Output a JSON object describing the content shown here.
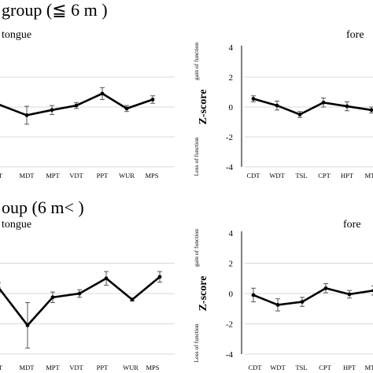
{
  "titles": {
    "top": "group (≦ 6 m )",
    "bottom": "oup (6 m< )"
  },
  "ylabel": {
    "main": "Z-score",
    "loss": "Loss of function",
    "gain": "gain of function"
  },
  "chart_data": [
    {
      "id": "top-left",
      "type": "line",
      "panel_label": "tongue",
      "categories": [
        "PT",
        "MDT",
        "MPT",
        "VDT",
        "PPT",
        "WUR",
        "MPS"
      ],
      "series": [
        {
          "values": [
            0.3,
            -0.55,
            -0.2,
            0.1,
            0.9,
            -0.1,
            0.5
          ],
          "error": [
            0.3,
            0.6,
            0.3,
            0.2,
            0.4,
            0.2,
            0.25
          ]
        }
      ],
      "ylim": [
        -4,
        4
      ],
      "yticks": [],
      "show_ylabel": false
    },
    {
      "id": "top-right",
      "type": "line",
      "panel_label": "fore",
      "categories": [
        "CDT",
        "WDT",
        "TSL",
        "CPT",
        "HPT",
        "MT"
      ],
      "series": [
        {
          "values": [
            0.55,
            0.1,
            -0.5,
            0.3,
            0.05,
            -0.2
          ],
          "error": [
            0.2,
            0.3,
            0.2,
            0.3,
            0.3,
            0.2
          ]
        }
      ],
      "ylim": [
        -4,
        4
      ],
      "yticks": [
        "4",
        "2",
        "0",
        "-2",
        "-4"
      ],
      "show_ylabel": true
    },
    {
      "id": "bottom-left",
      "type": "line",
      "panel_label": "tongue",
      "categories": [
        "PT",
        "MDT",
        "MPT",
        "VDT",
        "PPT",
        "WUR",
        "MPS"
      ],
      "series": [
        {
          "values": [
            0.4,
            -2.1,
            -0.25,
            0.0,
            1.0,
            -0.4,
            1.1
          ],
          "error": [
            0.3,
            1.5,
            0.35,
            0.25,
            0.45,
            0.1,
            0.35
          ]
        }
      ],
      "ylim": [
        -4,
        4
      ],
      "yticks": [],
      "show_ylabel": false
    },
    {
      "id": "bottom-right",
      "type": "line",
      "panel_label": "fore",
      "categories": [
        "CDT",
        "WDT",
        "TSL",
        "CPT",
        "HPT",
        "MT"
      ],
      "series": [
        {
          "values": [
            -0.1,
            -0.75,
            -0.55,
            0.35,
            -0.05,
            0.2
          ],
          "error": [
            0.45,
            0.4,
            0.3,
            0.3,
            0.25,
            0.3
          ]
        }
      ],
      "ylim": [
        -4,
        4
      ],
      "yticks": [
        "4",
        "2",
        "0",
        "-2",
        "-4"
      ],
      "show_ylabel": true
    }
  ]
}
